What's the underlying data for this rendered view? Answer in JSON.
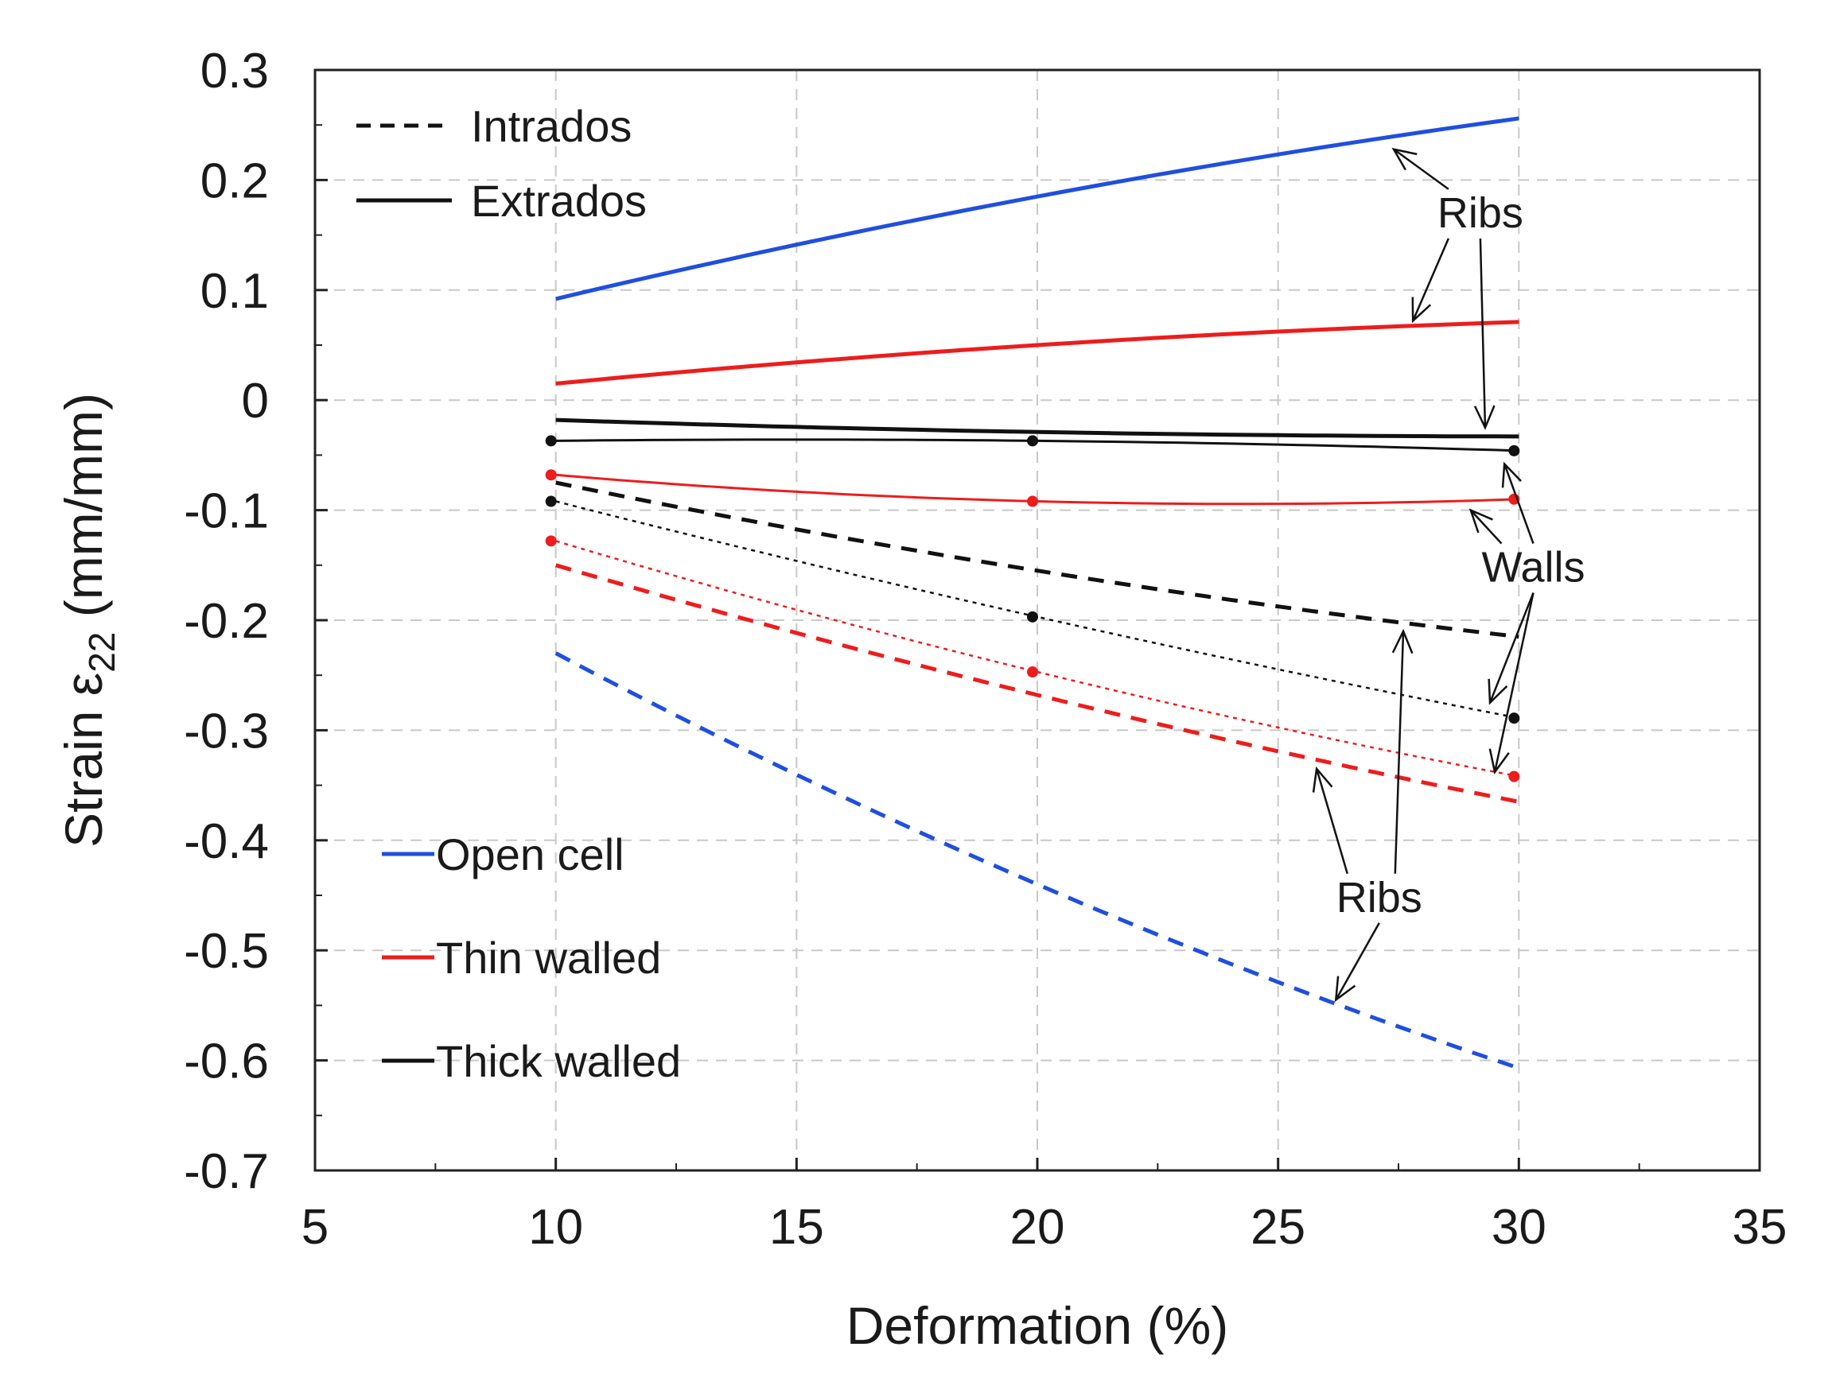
{
  "chart_data": {
    "type": "line",
    "title": "",
    "xlabel": "Deformation (%)",
    "ylabel": {
      "prefix": "Strain ε",
      "subscript": "22",
      "suffix": " (mm/mm)"
    },
    "xlim": [
      5,
      35
    ],
    "ylim": [
      -0.7,
      0.3
    ],
    "xticks": [
      5,
      10,
      15,
      20,
      25,
      30,
      35
    ],
    "yticks": [
      0.3,
      0.2,
      0.1,
      0,
      -0.1,
      -0.2,
      -0.3,
      -0.4,
      -0.5,
      -0.6,
      -0.7
    ],
    "xtick_labels": [
      "5",
      "10",
      "15",
      "20",
      "25",
      "30",
      "35"
    ],
    "ytick_labels": [
      "0.3",
      "0.2",
      "0.1",
      "0",
      "-0.1",
      "-0.2",
      "-0.3",
      "-0.4",
      "-0.5",
      "-0.6",
      "-0.7"
    ],
    "grid": true,
    "colors": {
      "open_cell": "#1f4fe0",
      "thin_walled": "#ee1c1c",
      "thick_walled": "#111111"
    },
    "series": [
      {
        "name": "Open cell – Extrados (Ribs)",
        "color": "#1f4fe0",
        "dash": "solid",
        "x": [
          10,
          20,
          30
        ],
        "y": [
          0.092,
          0.185,
          0.256
        ]
      },
      {
        "name": "Thin walled – Extrados (Ribs)",
        "color": "#ee1c1c",
        "dash": "solid",
        "x": [
          10,
          20,
          30
        ],
        "y": [
          0.015,
          0.05,
          0.071
        ]
      },
      {
        "name": "Thick walled – Extrados (Ribs)",
        "color": "#111111",
        "dash": "solid",
        "x": [
          10,
          20,
          30
        ],
        "y": [
          -0.018,
          -0.029,
          -0.033
        ]
      },
      {
        "name": "Thick walled – Extrados (Walls)",
        "color": "#111111",
        "dash": "solid-thin",
        "markers": true,
        "x": [
          10,
          20,
          30
        ],
        "y": [
          -0.037,
          -0.037,
          -0.046
        ]
      },
      {
        "name": "Thin walled – Extrados (Walls)",
        "color": "#ee1c1c",
        "dash": "solid-thin",
        "markers": true,
        "x": [
          10,
          20,
          30
        ],
        "y": [
          -0.068,
          -0.092,
          -0.09
        ]
      },
      {
        "name": "Thick walled – Intrados (Ribs)",
        "color": "#111111",
        "dash": "dashed",
        "x": [
          10,
          20,
          30
        ],
        "y": [
          -0.075,
          -0.155,
          -0.215
        ]
      },
      {
        "name": "Thick walled – Intrados (Walls)",
        "color": "#111111",
        "dash": "dotted",
        "markers": true,
        "x": [
          10,
          20,
          30
        ],
        "y": [
          -0.092,
          -0.197,
          -0.289
        ]
      },
      {
        "name": "Thin walled – Intrados (Walls)",
        "color": "#ee1c1c",
        "dash": "dotted",
        "markers": true,
        "x": [
          10,
          20,
          30
        ],
        "y": [
          -0.128,
          -0.247,
          -0.342
        ]
      },
      {
        "name": "Thin walled – Intrados (Ribs)",
        "color": "#ee1c1c",
        "dash": "dashed",
        "x": [
          10,
          20,
          30
        ],
        "y": [
          -0.15,
          -0.268,
          -0.365
        ]
      },
      {
        "name": "Open cell – Intrados (Ribs)",
        "color": "#1f4fe0",
        "dash": "dashed",
        "x": [
          10,
          20,
          30
        ],
        "y": [
          -0.23,
          -0.44,
          -0.607
        ]
      }
    ],
    "legend_style": {
      "position": "top-left",
      "entries": [
        {
          "label": "Intrados",
          "dash": "dashed"
        },
        {
          "label": "Extrados",
          "dash": "solid"
        }
      ]
    },
    "legend_material": {
      "position": "bottom-left",
      "entries": [
        {
          "label": "Open cell",
          "color": "#1f4fe0"
        },
        {
          "label": "Thin walled",
          "color": "#ee1c1c"
        },
        {
          "label": "Thick walled",
          "color": "#111111"
        }
      ]
    },
    "annotations": [
      {
        "text": "Ribs",
        "anchor": [
          29.2,
          0.157
        ],
        "targets": [
          [
            27.4,
            0.228
          ],
          [
            27.8,
            0.072
          ],
          [
            29.3,
            -0.025
          ]
        ]
      },
      {
        "text": "Walls",
        "anchor": [
          30.3,
          -0.165
        ],
        "targets": [
          [
            29.7,
            -0.058
          ],
          [
            29.0,
            -0.1
          ],
          [
            29.4,
            -0.275
          ],
          [
            29.5,
            -0.338
          ]
        ]
      },
      {
        "text": "Ribs",
        "anchor": [
          27.1,
          -0.465
        ],
        "targets": [
          [
            25.8,
            -0.335
          ],
          [
            27.6,
            -0.21
          ],
          [
            26.2,
            -0.545
          ]
        ]
      }
    ]
  }
}
